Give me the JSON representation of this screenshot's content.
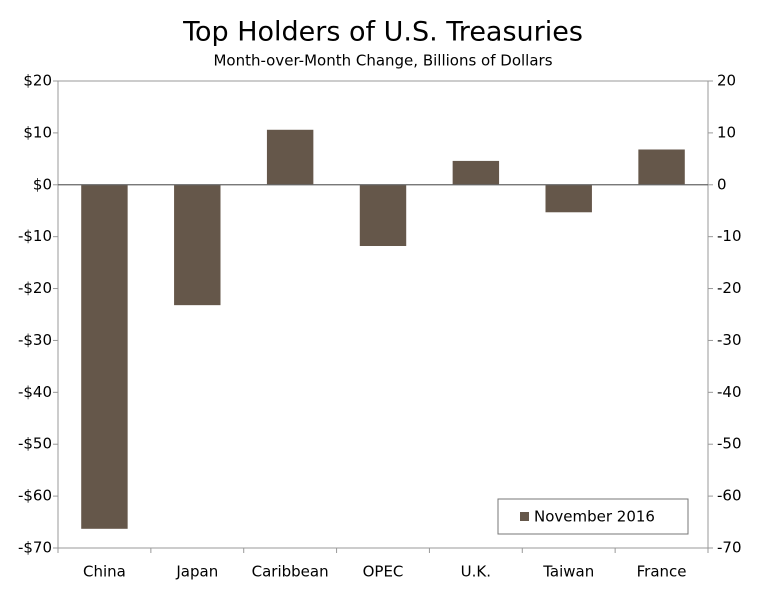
{
  "chart_data": {
    "type": "bar",
    "title": "Top Holders of U.S. Treasuries",
    "subtitle": "Month-over-Month Change, Billions of Dollars",
    "categories": [
      "China",
      "Japan",
      "Caribbean",
      "OPEC",
      "U.K.",
      "Taiwan",
      "France"
    ],
    "series": [
      {
        "name": "November 2016",
        "color": "#65574a",
        "values": [
          -66.3,
          -23.2,
          10.6,
          -11.8,
          4.6,
          -5.3,
          6.8
        ]
      }
    ],
    "ylim": [
      -70,
      20
    ],
    "yticks": [
      {
        "value": 20,
        "label": "$20"
      },
      {
        "value": 10,
        "label": "$10"
      },
      {
        "value": 0,
        "label": "$0"
      },
      {
        "value": -10,
        "label": "-$10"
      },
      {
        "value": -20,
        "label": "-$20"
      },
      {
        "value": -30,
        "label": "-$30"
      },
      {
        "value": -40,
        "label": "-$40"
      },
      {
        "value": -50,
        "label": "-$50"
      },
      {
        "value": -60,
        "label": "-$60"
      },
      {
        "value": -70,
        "label": "-$70"
      }
    ],
    "y2lim": [
      -70,
      20
    ],
    "y2ticks": [
      20,
      10,
      0,
      -10,
      -20,
      -30,
      -40,
      -50,
      -60,
      -70
    ],
    "grid": false,
    "legend": "lower-right"
  }
}
